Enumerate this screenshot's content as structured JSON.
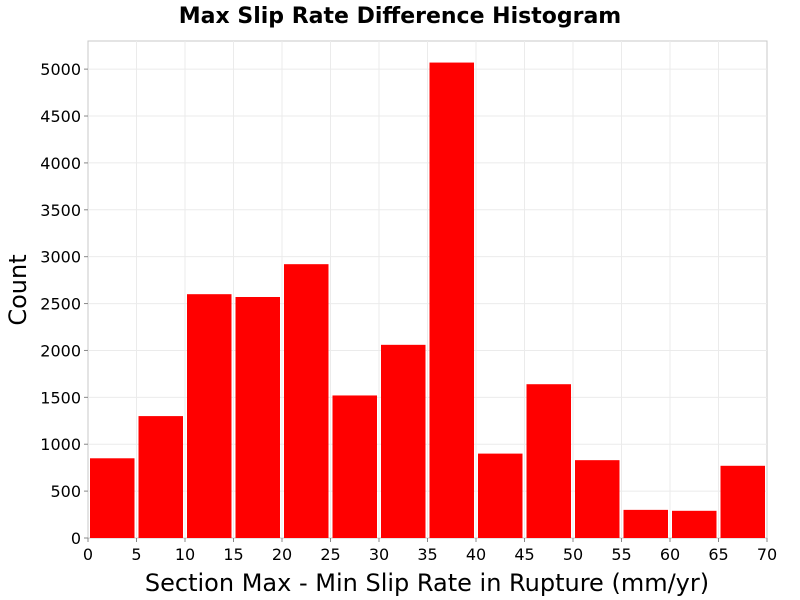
{
  "chart_data": {
    "type": "bar",
    "title": "Max Slip Rate Difference Histogram",
    "xlabel": "Section Max - Min Slip Rate in Rupture (mm/yr)",
    "ylabel": "Count",
    "bin_edges": [
      0,
      5,
      10,
      15,
      20,
      25,
      30,
      35,
      40,
      45,
      50,
      55,
      60,
      65,
      70
    ],
    "values": [
      850,
      1300,
      2600,
      2570,
      2920,
      1520,
      2060,
      5070,
      900,
      1640,
      830,
      300,
      290,
      770
    ],
    "xlim": [
      0,
      70
    ],
    "ylim": [
      0,
      5300
    ],
    "xticks": [
      0,
      5,
      10,
      15,
      20,
      25,
      30,
      35,
      40,
      45,
      50,
      55,
      60,
      65,
      70
    ],
    "yticks": [
      0,
      500,
      1000,
      1500,
      2000,
      2500,
      3000,
      3500,
      4000,
      4500,
      5000
    ],
    "bar_color": "#ff0000",
    "grid": true
  }
}
